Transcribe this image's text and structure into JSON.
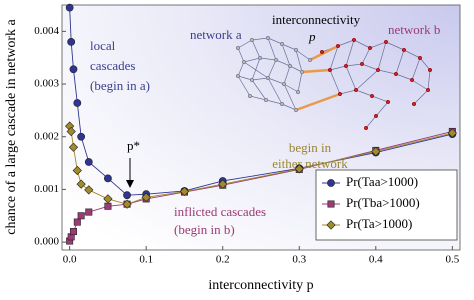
{
  "chart_data": {
    "type": "line",
    "x_label": "interconnectivity p",
    "y_label": "chance of a large cascade in network a",
    "x": [
      0,
      0.002,
      0.005,
      0.01,
      0.015,
      0.025,
      0.05,
      0.075,
      0.1,
      0.15,
      0.2,
      0.3,
      0.4,
      0.5
    ],
    "series": [
      {
        "name": "Pr(Taa>1000)",
        "color": "#2f3590",
        "marker": "circle",
        "values": [
          0.00445,
          0.0038,
          0.00328,
          0.00264,
          0.002,
          0.00152,
          0.00121,
          0.00089,
          0.00091,
          0.00097,
          0.00116,
          0.0014,
          0.0017,
          0.00205
        ]
      },
      {
        "name": "Pr(Tba>1000)",
        "color": "#9c3a74",
        "marker": "square",
        "values": [
          2e-05,
          0.0001,
          0.0002,
          0.00038,
          0.0005,
          0.00057,
          0.00068,
          0.00072,
          0.00082,
          0.00095,
          0.00108,
          0.00138,
          0.00174,
          0.0021
        ]
      },
      {
        "name": "Pr(Ta>1000)",
        "color": "#a08a2a",
        "marker": "diamond",
        "values": [
          0.0022,
          0.0021,
          0.0018,
          0.00136,
          0.0011,
          0.00099,
          0.00082,
          0.00072,
          0.00085,
          0.00096,
          0.0011,
          0.00139,
          0.00172,
          0.00207
        ]
      }
    ],
    "xlim": [
      -0.01,
      0.51
    ],
    "ylim": [
      -0.00015,
      0.0045
    ],
    "xticks": [
      {
        "value": 0,
        "label": "0.0"
      },
      0.1,
      0.2,
      0.3,
      0.4,
      0.5
    ],
    "yticks": [
      {
        "value": 0,
        "label": "0.000"
      },
      {
        "value": 0.001,
        "label": "0.001"
      },
      {
        "value": 0.002,
        "label": "0.002"
      },
      {
        "value": 0.003,
        "label": "0.003"
      },
      {
        "value": 0.004,
        "label": "0.004"
      }
    ],
    "legend_position": "lower right",
    "annotations": [
      "local",
      "cascades",
      "(begin in a)",
      "begin in",
      "either network",
      "inflicted cascades",
      "(begin in b)",
      "p*"
    ],
    "inset_labels": [
      "network a",
      "network b",
      "interconnectivity",
      "p"
    ]
  }
}
